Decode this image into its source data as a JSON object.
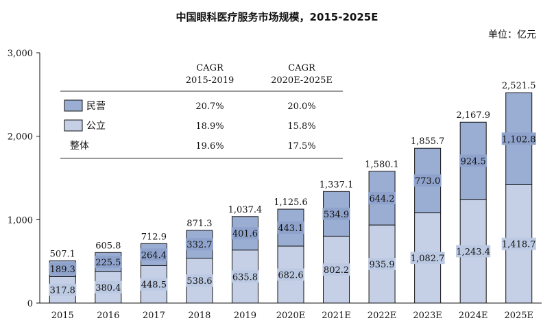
{
  "chart_data": {
    "type": "bar",
    "title": "中国眼科医疗服务市场规模，2015-2025E",
    "unit": "单位：亿元",
    "categories": [
      "2015",
      "2016",
      "2017",
      "2018",
      "2019",
      "2020E",
      "2021E",
      "2022E",
      "2023E",
      "2024E",
      "2025E"
    ],
    "series": [
      {
        "name": "公立",
        "values": [
          317.8,
          380.4,
          448.5,
          538.6,
          635.8,
          682.6,
          802.2,
          935.9,
          1082.7,
          1243.4,
          1418.7
        ],
        "labels": [
          "317.8",
          "380.4",
          "448.5",
          "538.6",
          "635.8",
          "682.6",
          "802.2",
          "935.9",
          "1,082.7",
          "1,243.4",
          "1,418.7"
        ]
      },
      {
        "name": "民营",
        "values": [
          189.3,
          225.5,
          264.4,
          332.7,
          401.6,
          443.1,
          534.9,
          644.2,
          773.0,
          924.5,
          1102.8
        ],
        "labels": [
          "189.3",
          "225.5",
          "264.4",
          "332.7",
          "401.6",
          "443.1",
          "534.9",
          "644.2",
          "773.0",
          "924.5",
          "1,102.8"
        ]
      }
    ],
    "totals": [
      "507.1",
      "605.8",
      "712.9",
      "871.3",
      "1,037.4",
      "1,125.6",
      "1,337.1",
      "1,580.1",
      "1,855.7",
      "2,167.9",
      "2,521.5"
    ],
    "total_values": [
      507.1,
      605.8,
      712.9,
      871.3,
      1037.4,
      1125.6,
      1337.1,
      1580.1,
      1855.7,
      2167.9,
      2521.5
    ],
    "yticks": [
      "0",
      "1,000",
      "2,000",
      "3,000"
    ],
    "ytick_values": [
      0,
      1000,
      2000,
      3000
    ],
    "ylim": [
      0,
      3000
    ],
    "stacked": true,
    "colors": {
      "公立": "#c5d0e6",
      "民营": "#9aaed3",
      "edge": "#111111",
      "label_bg_public": "#bcc9e2",
      "label_bg_private": "#8ea2cb"
    },
    "cagr_table": {
      "headers": [
        [
          "CAGR",
          "2015-2019"
        ],
        [
          "CAGR",
          "2020E-2025E"
        ]
      ],
      "rows": [
        {
          "label": "民营",
          "values": [
            "20.7%",
            "20.0%"
          ],
          "swatch": "#9aaed3"
        },
        {
          "label": "公立",
          "values": [
            "18.9%",
            "15.8%"
          ],
          "swatch": "#c5d0e6"
        },
        {
          "label": "整体",
          "values": [
            "19.6%",
            "17.5%"
          ],
          "swatch": null
        }
      ]
    }
  }
}
